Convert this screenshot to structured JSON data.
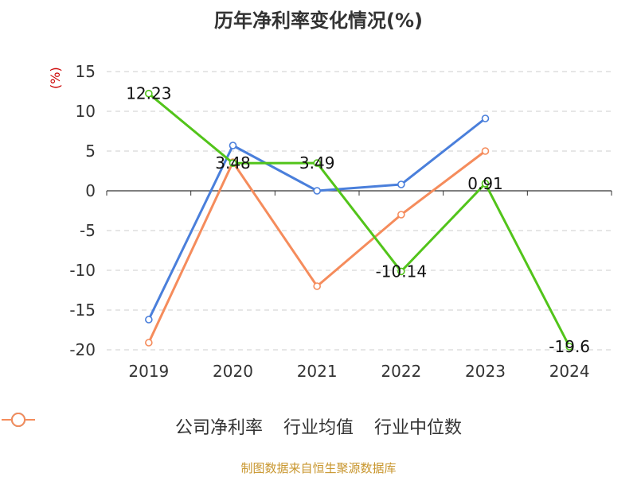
{
  "title": "历年净利率变化情况(%)",
  "footer": "制图数据来自恒生聚源数据库",
  "chart_data": {
    "type": "line",
    "title": "历年净利率变化情况(%)",
    "ylabel": "(%)",
    "xlabel": "",
    "categories": [
      "2019",
      "2020",
      "2021",
      "2022",
      "2023",
      "2024"
    ],
    "ylim": [
      -20,
      15
    ],
    "yticks": [
      15,
      10,
      5,
      0,
      -5,
      -10,
      -15,
      -20
    ],
    "grid": true,
    "legend": "bottom",
    "series": [
      {
        "name": "公司净利率",
        "color": "#52c41a",
        "values": [
          12.23,
          3.48,
          3.49,
          -10.14,
          0.91,
          -19.6
        ],
        "labels": [
          "12.23",
          "3.48",
          "3.49",
          "-10.14",
          "0.91",
          "-19.6"
        ]
      },
      {
        "name": "行业均值",
        "color": "#4a7fdb",
        "values": [
          -16.2,
          5.7,
          0.0,
          0.8,
          9.1,
          null
        ]
      },
      {
        "name": "行业中位数",
        "color": "#f58c5c",
        "values": [
          -19.1,
          3.6,
          -12.0,
          -3.0,
          5.0,
          null
        ]
      }
    ]
  }
}
